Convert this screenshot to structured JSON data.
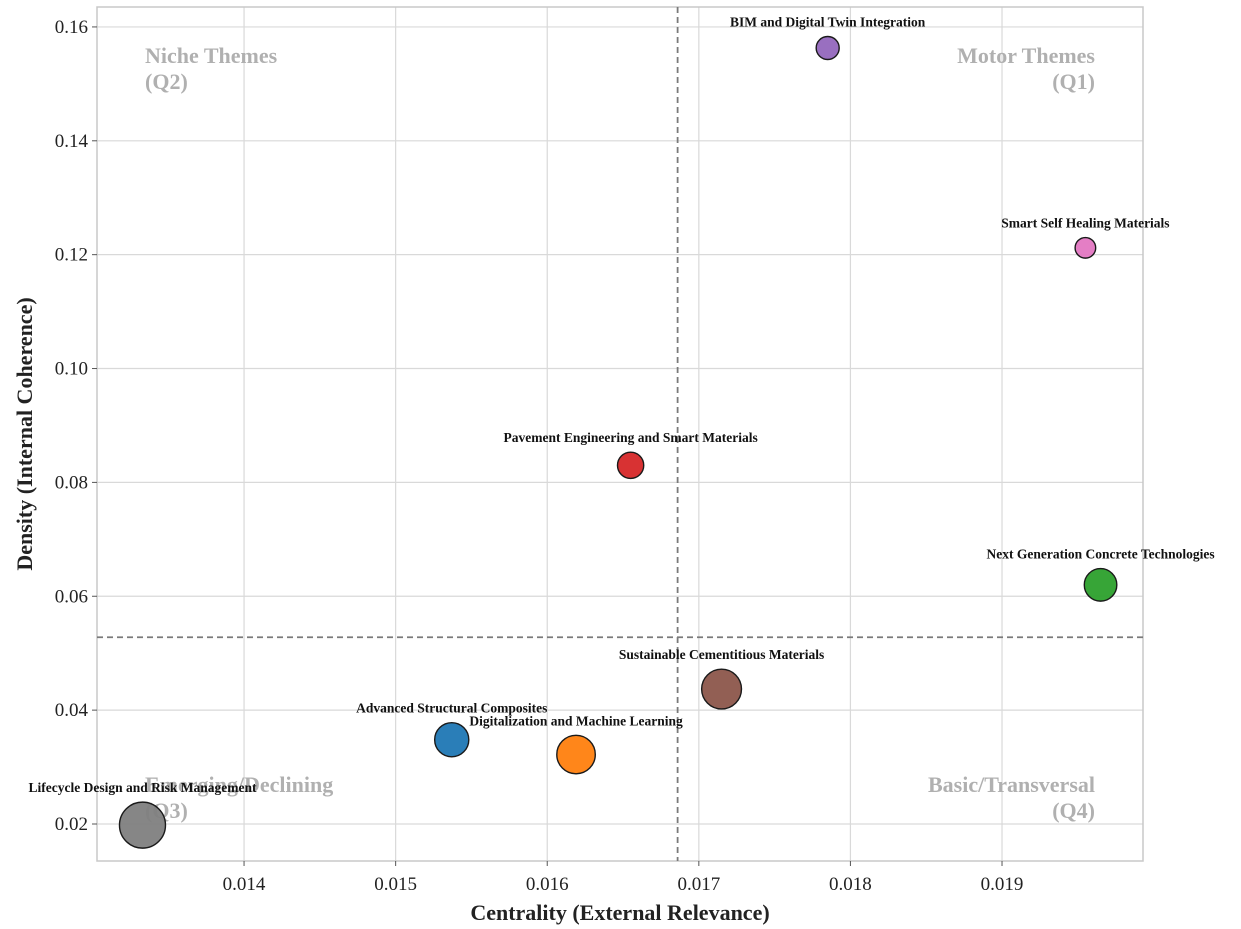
{
  "chart_data": {
    "type": "scatter",
    "xlabel": "Centrality (External Relevance)",
    "ylabel": "Density (Internal Coherence)",
    "xlim": [
      0.01303,
      0.01993
    ],
    "ylim": [
      0.0135,
      0.1635
    ],
    "xticks": [
      "0.014",
      "0.015",
      "0.016",
      "0.017",
      "0.018",
      "0.019"
    ],
    "xtick_values": [
      0.014,
      0.015,
      0.016,
      0.017,
      0.018,
      0.019
    ],
    "yticks": [
      "0.02",
      "0.04",
      "0.06",
      "0.08",
      "0.10",
      "0.12",
      "0.14",
      "0.16"
    ],
    "ytick_values": [
      0.02,
      0.04,
      0.06,
      0.08,
      0.1,
      0.12,
      0.14,
      0.16
    ],
    "grid": true,
    "reference_lines": {
      "x": 0.01686,
      "y": 0.0528
    },
    "quadrant_labels": [
      {
        "id": "q2",
        "text": [
          "Niche Themes",
          "(Q2)"
        ],
        "corner": "top-left"
      },
      {
        "id": "q1",
        "text": [
          "Motor Themes",
          "(Q1)"
        ],
        "corner": "top-right"
      },
      {
        "id": "q3",
        "text": [
          "Emerging/Declining",
          "(Q3)"
        ],
        "corner": "bottom-left"
      },
      {
        "id": "q4",
        "text": [
          "Basic/Transversal",
          "(Q4)"
        ],
        "corner": "bottom-right"
      }
    ],
    "points": [
      {
        "name": "BIM and Digital Twin Integration",
        "x": 0.01785,
        "y": 0.1563,
        "size": 1.0,
        "color": "#9467bd"
      },
      {
        "name": "Smart Self Healing Materials",
        "x": 0.01955,
        "y": 0.1212,
        "size": 0.8,
        "color": "#e377c2"
      },
      {
        "name": "Pavement Engineering and Smart Materials",
        "x": 0.01655,
        "y": 0.083,
        "size": 1.3,
        "color": "#d62728"
      },
      {
        "name": "Next Generation Concrete Technologies",
        "x": 0.01965,
        "y": 0.062,
        "size": 2.0,
        "color": "#2ca02c"
      },
      {
        "name": "Sustainable Cementitious Materials",
        "x": 0.01715,
        "y": 0.0437,
        "size": 3.0,
        "color": "#8c564b"
      },
      {
        "name": "Advanced Structural Composites",
        "x": 0.01537,
        "y": 0.0348,
        "size": 2.2,
        "color": "#1f77b4"
      },
      {
        "name": "Digitalization and Machine Learning",
        "x": 0.01619,
        "y": 0.0322,
        "size": 2.8,
        "color": "#ff7f0e"
      },
      {
        "name": "Lifecycle Design and Risk Management",
        "x": 0.01333,
        "y": 0.0198,
        "size": 4.0,
        "color": "#7f7f7f"
      }
    ]
  }
}
